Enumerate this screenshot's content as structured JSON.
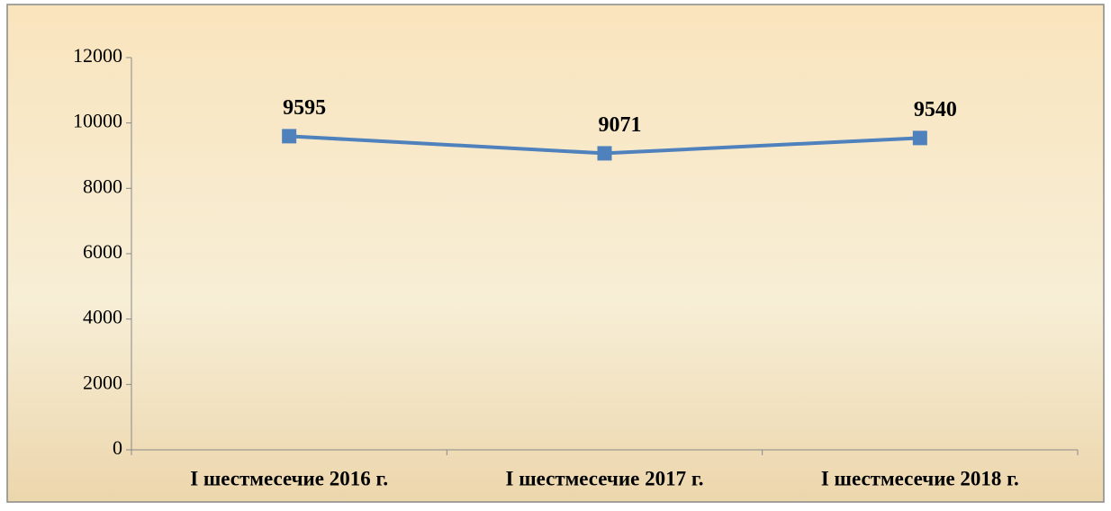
{
  "chart_data": {
    "type": "line",
    "categories": [
      "I шестмесечие 2016 г.",
      "I шестмесечие 2017 г.",
      "I шестмесечие 2018 г."
    ],
    "series": [
      {
        "name": "Series 1",
        "color": "#4f81bd",
        "values": [
          9595,
          9071,
          9540
        ]
      }
    ],
    "ylim": [
      0,
      12000
    ],
    "yticks": [
      0,
      2000,
      4000,
      6000,
      8000,
      10000,
      12000
    ],
    "grid": false
  }
}
